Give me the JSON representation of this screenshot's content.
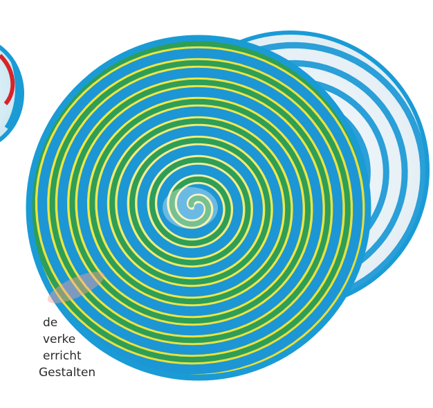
{
  "caption": {
    "lines": [
      "de",
      "verke",
      "erricht",
      "Gestalten"
    ]
  }
}
